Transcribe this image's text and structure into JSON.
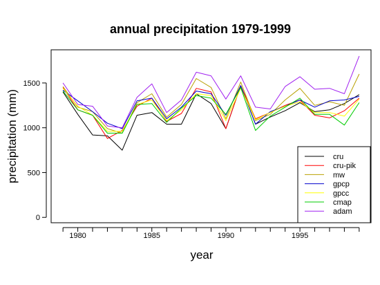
{
  "chart_data": {
    "type": "line",
    "title": "annual precipitation 1979-1999",
    "xlabel": "year",
    "ylabel": "precipitation (mm)",
    "x": [
      1979,
      1980,
      1981,
      1982,
      1983,
      1984,
      1985,
      1986,
      1987,
      1988,
      1989,
      1990,
      1991,
      1992,
      1993,
      1994,
      1995,
      1996,
      1997,
      1998,
      1999
    ],
    "xlim": [
      1978.2,
      1999.8
    ],
    "ylim": [
      -60,
      1870
    ],
    "x_ticks": [
      1980,
      1985,
      1990,
      1995
    ],
    "y_ticks": [
      0,
      500,
      1000,
      1500
    ],
    "grid": false,
    "legend_position": "bottom-right",
    "series": [
      {
        "name": "cru",
        "color": "#000000",
        "values": [
          1400,
          1150,
          920,
          910,
          750,
          1140,
          1170,
          1040,
          1040,
          1380,
          1270,
          990,
          1470,
          1040,
          1120,
          1190,
          1280,
          1180,
          1200,
          1270,
          1370
        ]
      },
      {
        "name": "cru-pik",
        "color": "#ff0000",
        "values": [
          1450,
          1200,
          1140,
          880,
          970,
          1240,
          1330,
          1070,
          1160,
          1440,
          1400,
          990,
          1470,
          1100,
          1170,
          1250,
          1310,
          1140,
          1110,
          1190,
          1330
        ]
      },
      {
        "name": "mw",
        "color": "#b8a000",
        "values": [
          1460,
          1230,
          1180,
          990,
          940,
          1280,
          1380,
          1120,
          1260,
          1550,
          1450,
          1100,
          1510,
          1080,
          1150,
          1310,
          1440,
          1250,
          1290,
          1250,
          1600
        ]
      },
      {
        "name": "gpcp",
        "color": "#0000cc",
        "values": [
          1420,
          1300,
          1180,
          1050,
          990,
          1300,
          1330,
          1100,
          1230,
          1410,
          1380,
          1140,
          1470,
          1040,
          1180,
          1240,
          1310,
          1230,
          1300,
          1310,
          1350
        ]
      },
      {
        "name": "gpcc",
        "color": "#ffff00",
        "values": [
          1440,
          1240,
          1140,
          960,
          960,
          1260,
          1310,
          1080,
          1200,
          1380,
          1360,
          1080,
          1440,
          1090,
          1170,
          1240,
          1290,
          1170,
          1170,
          1130,
          1320
        ]
      },
      {
        "name": "cmap",
        "color": "#00cc00",
        "values": [
          1410,
          1200,
          1140,
          940,
          940,
          1260,
          1270,
          1060,
          1220,
          1360,
          1330,
          1150,
          1450,
          970,
          1130,
          1230,
          1330,
          1150,
          1150,
          1030,
          1280
        ]
      },
      {
        "name": "adam",
        "color": "#a020f0",
        "values": [
          1500,
          1260,
          1240,
          1020,
          1000,
          1340,
          1490,
          1170,
          1310,
          1620,
          1580,
          1320,
          1580,
          1230,
          1210,
          1460,
          1570,
          1430,
          1440,
          1380,
          1800
        ]
      }
    ]
  }
}
